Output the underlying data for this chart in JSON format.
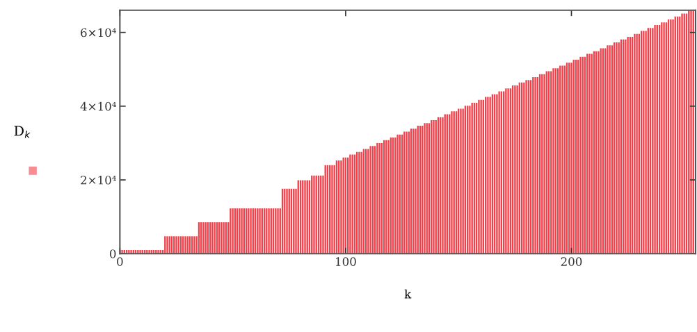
{
  "chart_data": {
    "type": "bar",
    "xlabel": "k",
    "ylabel": "D$_{k}$",
    "x": [
      0,
      1,
      2,
      3,
      4,
      5,
      6,
      7,
      8,
      9,
      10,
      11,
      12,
      13,
      14,
      15,
      16,
      17,
      18,
      19,
      20,
      21,
      22,
      23,
      24,
      25,
      26,
      27,
      28,
      29,
      30,
      31,
      32,
      33,
      34,
      35,
      36,
      37,
      38,
      39,
      40,
      41,
      42,
      43,
      44,
      45,
      46,
      47,
      48,
      49,
      50,
      51,
      52,
      53,
      54,
      55,
      56,
      57,
      58,
      59,
      60,
      61,
      62,
      63,
      64,
      65,
      66,
      67,
      68,
      69,
      70,
      71,
      72,
      73,
      74,
      75,
      76,
      77,
      78,
      79,
      80,
      81,
      82,
      83,
      84,
      85,
      86,
      87,
      88,
      89,
      90,
      91,
      92,
      93,
      94,
      95,
      96,
      97,
      98,
      99,
      100,
      101,
      102,
      103,
      104,
      105,
      106,
      107,
      108,
      109,
      110,
      111,
      112,
      113,
      114,
      115,
      116,
      117,
      118,
      119,
      120,
      121,
      122,
      123,
      124,
      125,
      126,
      127,
      128,
      129,
      130,
      131,
      132,
      133,
      134,
      135,
      136,
      137,
      138,
      139,
      140,
      141,
      142,
      143,
      144,
      145,
      146,
      147,
      148,
      149,
      150,
      151,
      152,
      153,
      154,
      155,
      156,
      157,
      158,
      159,
      160,
      161,
      162,
      163,
      164,
      165,
      166,
      167,
      168,
      169,
      170,
      171,
      172,
      173,
      174,
      175,
      176,
      177,
      178,
      179,
      180,
      181,
      182,
      183,
      184,
      185,
      186,
      187,
      188,
      189,
      190,
      191,
      192,
      193,
      194,
      195,
      196,
      197,
      198,
      199,
      200,
      201,
      202,
      203,
      204,
      205,
      206,
      207,
      208,
      209,
      210,
      211,
      212,
      213,
      214,
      215,
      216,
      217,
      218,
      219,
      220,
      221,
      222,
      223,
      224,
      225,
      226,
      227,
      228,
      229,
      230,
      231,
      232,
      233,
      234,
      235,
      236,
      237,
      238,
      239,
      240,
      241,
      242,
      243,
      244,
      245,
      246,
      247,
      248,
      249,
      250,
      251,
      252,
      253,
      254
    ],
    "series": [
      {
        "color": "#f2404a",
        "values": [
          1000,
          1000,
          1000,
          1000,
          1000,
          1000,
          1000,
          1000,
          1000,
          1000,
          1000,
          1000,
          1000,
          1000,
          1000,
          1000,
          1000,
          1000,
          1000,
          1000,
          4700,
          4700,
          4700,
          4700,
          4700,
          4700,
          4700,
          4700,
          4700,
          4700,
          4700,
          4700,
          4700,
          4700,
          4700,
          8500,
          8500,
          8500,
          8500,
          8500,
          8500,
          8500,
          8500,
          8500,
          8500,
          8500,
          8500,
          8500,
          8500,
          12300,
          12300,
          12300,
          12300,
          12300,
          12300,
          12300,
          12300,
          12300,
          12300,
          12300,
          12300,
          12300,
          12300,
          12300,
          12300,
          12300,
          12300,
          12300,
          12300,
          12300,
          12300,
          12300,
          17600,
          17600,
          17600,
          17600,
          17600,
          17600,
          17600,
          19900,
          19900,
          19900,
          19900,
          19900,
          19900,
          21200,
          21200,
          21200,
          21200,
          21200,
          21200,
          24000,
          24000,
          24000,
          24000,
          24000,
          25300,
          25300,
          25300,
          26100,
          26100,
          26100,
          26900,
          26900,
          26900,
          27600,
          27600,
          27600,
          28400,
          28400,
          28400,
          29200,
          29200,
          29200,
          30000,
          30000,
          30000,
          30800,
          30800,
          30800,
          31500,
          31500,
          31500,
          32300,
          32300,
          32300,
          33100,
          33100,
          33100,
          33900,
          33900,
          33900,
          34700,
          34700,
          34700,
          35400,
          35400,
          35400,
          36200,
          36200,
          36200,
          37000,
          37000,
          37000,
          37800,
          37800,
          37800,
          38600,
          38600,
          38600,
          39300,
          39300,
          39300,
          40100,
          40100,
          40100,
          40900,
          40900,
          40900,
          41700,
          41700,
          41700,
          42500,
          42500,
          42500,
          43200,
          43200,
          43200,
          44000,
          44000,
          44000,
          44800,
          44800,
          44800,
          45600,
          45600,
          45600,
          46400,
          46400,
          46400,
          47100,
          47100,
          47100,
          47900,
          47900,
          47900,
          48700,
          48700,
          48700,
          49500,
          49500,
          49500,
          50300,
          50300,
          50300,
          51000,
          51000,
          51000,
          51800,
          51800,
          51800,
          52600,
          52600,
          52600,
          53400,
          53400,
          53400,
          54200,
          54200,
          54200,
          54900,
          54900,
          54900,
          55700,
          55700,
          55700,
          56500,
          56500,
          56500,
          57300,
          57300,
          57300,
          58100,
          58100,
          58100,
          58800,
          58800,
          58800,
          59600,
          59600,
          59600,
          60400,
          60400,
          60400,
          61200,
          61200,
          61200,
          62000,
          62000,
          62000,
          62700,
          62700,
          62700,
          63500,
          63500,
          63500,
          64300,
          64300,
          64300,
          65100,
          65100,
          65100,
          65900,
          65900,
          65900
        ]
      }
    ],
    "xlim": [
      0,
      255
    ],
    "xticks": [
      0,
      100,
      200
    ],
    "ylim": [
      0,
      66000
    ],
    "yticks": [
      0,
      {
        "value": 20000,
        "label": "2×10⁴"
      },
      {
        "value": 40000,
        "label": "4×10⁴"
      },
      {
        "value": 60000,
        "label": "6×10⁴"
      }
    ],
    "grid": false
  }
}
